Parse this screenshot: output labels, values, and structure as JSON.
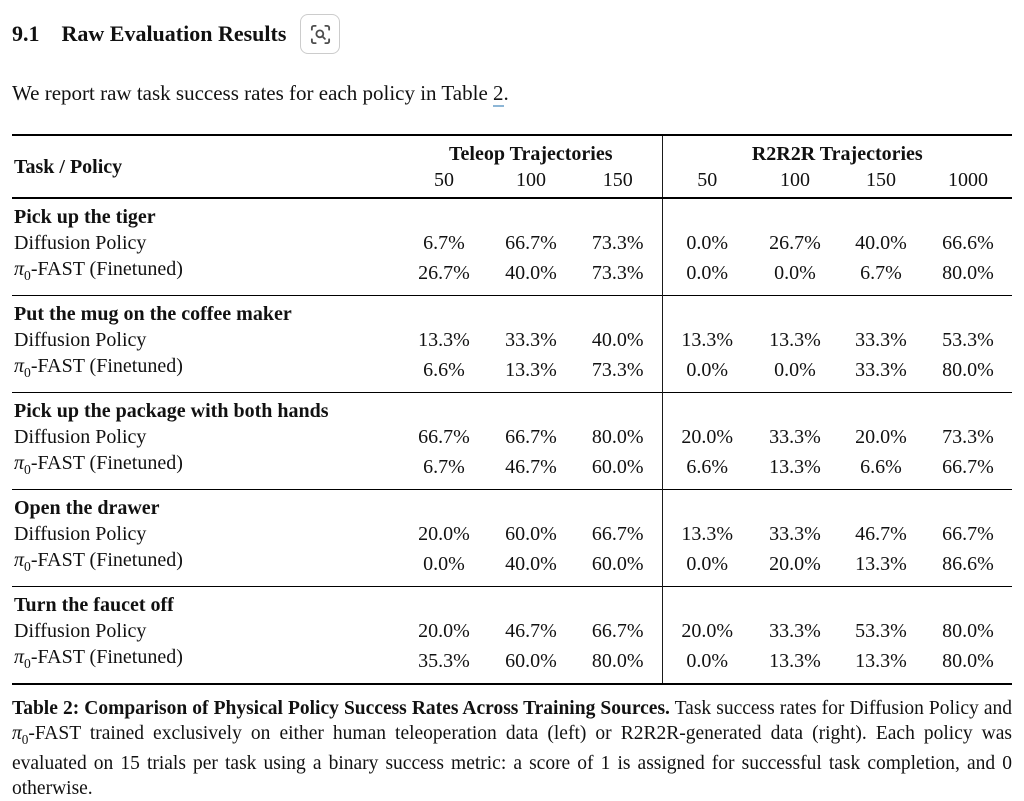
{
  "header": {
    "section_number": "9.1",
    "section_title": "Raw Evaluation Results",
    "inspect_button": "inspect-figure"
  },
  "intro": {
    "text_before": "We report raw task success rates for each policy in Table ",
    "link_text": "2",
    "text_after": "."
  },
  "table": {
    "columns": {
      "task": "Task / Policy",
      "teleop_label": "Teleop Trajectories",
      "teleop_counts": [
        "50",
        "100",
        "150"
      ],
      "r2r2r_label": "R2R2R Trajectories",
      "r2r2r_counts": [
        "50",
        "100",
        "150",
        "1000"
      ]
    },
    "groups": [
      {
        "task": "Pick up the tiger",
        "rows": [
          {
            "policy": "Diffusion Policy",
            "values": [
              "6.7%",
              "66.7%",
              "73.3%",
              "0.0%",
              "26.7%",
              "40.0%",
              "66.6%"
            ]
          },
          {
            "policy": "π0-FAST (Finetuned)",
            "values": [
              "26.7%",
              "40.0%",
              "73.3%",
              "0.0%",
              "0.0%",
              "6.7%",
              "80.0%"
            ]
          }
        ]
      },
      {
        "task": "Put the mug on the coffee maker",
        "rows": [
          {
            "policy": "Diffusion Policy",
            "values": [
              "13.3%",
              "33.3%",
              "40.0%",
              "13.3%",
              "13.3%",
              "33.3%",
              "53.3%"
            ]
          },
          {
            "policy": "π0-FAST (Finetuned)",
            "values": [
              "6.6%",
              "13.3%",
              "73.3%",
              "0.0%",
              "0.0%",
              "33.3%",
              "80.0%"
            ]
          }
        ]
      },
      {
        "task": "Pick up the package with both hands",
        "rows": [
          {
            "policy": "Diffusion Policy",
            "values": [
              "66.7%",
              "66.7%",
              "80.0%",
              "20.0%",
              "33.3%",
              "20.0%",
              "73.3%"
            ]
          },
          {
            "policy": "π0-FAST (Finetuned)",
            "values": [
              "6.7%",
              "46.7%",
              "60.0%",
              "6.6%",
              "13.3%",
              "6.6%",
              "66.7%"
            ]
          }
        ]
      },
      {
        "task": "Open the drawer",
        "rows": [
          {
            "policy": "Diffusion Policy",
            "values": [
              "20.0%",
              "60.0%",
              "66.7%",
              "13.3%",
              "33.3%",
              "46.7%",
              "66.7%"
            ]
          },
          {
            "policy": "π0-FAST (Finetuned)",
            "values": [
              "0.0%",
              "40.0%",
              "60.0%",
              "0.0%",
              "20.0%",
              "13.3%",
              "86.6%"
            ]
          }
        ]
      },
      {
        "task": "Turn the faucet off",
        "rows": [
          {
            "policy": "Diffusion Policy",
            "values": [
              "20.0%",
              "46.7%",
              "66.7%",
              "20.0%",
              "33.3%",
              "53.3%",
              "80.0%"
            ]
          },
          {
            "policy": "π0-FAST (Finetuned)",
            "values": [
              "35.3%",
              "60.0%",
              "80.0%",
              "0.0%",
              "13.3%",
              "13.3%",
              "80.0%"
            ]
          }
        ]
      }
    ],
    "caption": {
      "bold": "Table 2: Comparison of Physical Policy Success Rates Across Training Sources.",
      "text": "Task success rates for Diffusion Policy and π0-FAST trained exclusively on either human teleoperation data (left) or R2R2R-generated data (right). Each policy was evaluated on 15 trials per task using a binary success metric: a score of 1 is assigned for successful task completion, and 0 otherwise."
    }
  },
  "colors": {
    "link_underline": "#8db6d6",
    "rule": "#000000",
    "icon_border": "#cccccc",
    "icon_stroke": "#4d4d4d"
  }
}
